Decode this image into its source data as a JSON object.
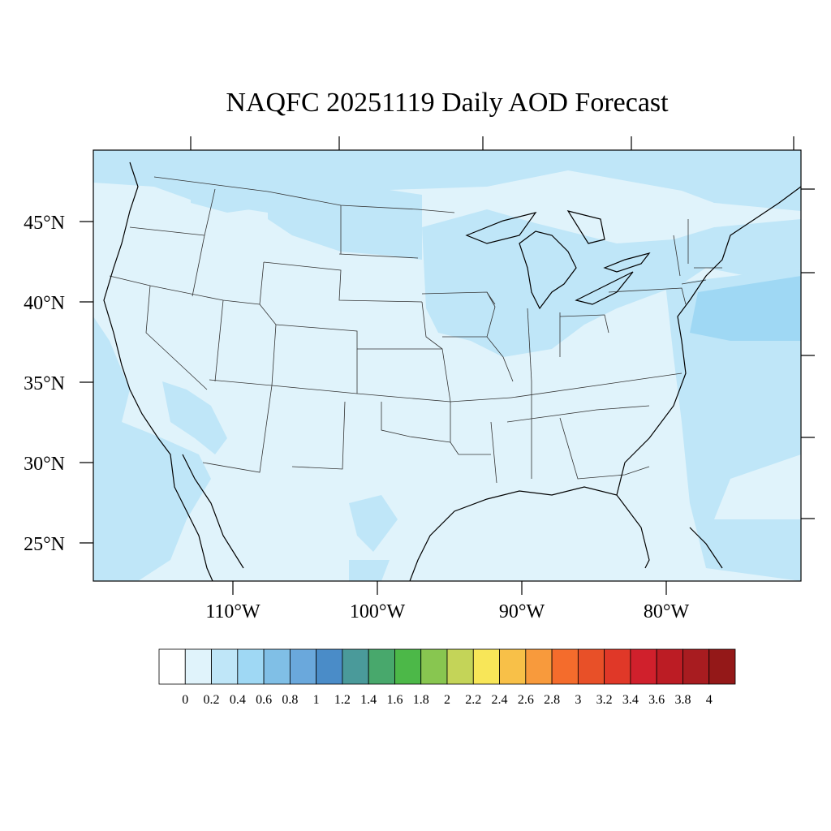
{
  "title": "NAQFC 20251119 Daily AOD Forecast",
  "map": {
    "lat_labels": [
      "45°N",
      "40°N",
      "35°N",
      "30°N",
      "25°N"
    ],
    "lon_labels": [
      "110°W",
      "100°W",
      "90°W",
      "80°W"
    ],
    "background_color": "#e0f3fb"
  },
  "colorbar": {
    "labels": [
      "0",
      "0.2",
      "0.4",
      "0.6",
      "0.8",
      "1",
      "1.2",
      "1.4",
      "1.6",
      "1.8",
      "2",
      "2.2",
      "2.4",
      "2.6",
      "2.8",
      "3",
      "3.2",
      "3.4",
      "3.6",
      "3.8",
      "4"
    ],
    "colors": [
      "#ffffff",
      "#e0f3fb",
      "#bfe6f8",
      "#9fd8f4",
      "#80bfe6",
      "#6aa8dc",
      "#4a8cc8",
      "#4a9a9a",
      "#48a86c",
      "#4cb848",
      "#88c650",
      "#c4d458",
      "#f8e658",
      "#f8c048",
      "#f89a3c",
      "#f46c2c",
      "#e85028",
      "#e03828",
      "#d0202c",
      "#bc1c24",
      "#a81c20",
      "#941818"
    ]
  }
}
